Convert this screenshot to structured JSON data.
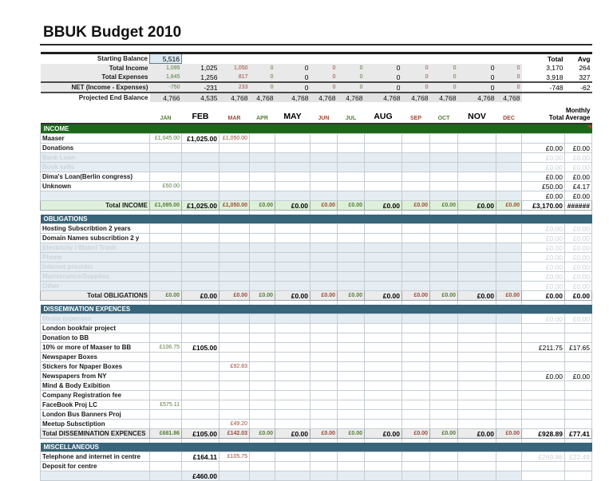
{
  "title": "BBUK Budget 2010",
  "months": [
    "JAN",
    "FEB",
    "MAR",
    "APR",
    "MAY",
    "JUN",
    "JUL",
    "AUG",
    "SEP",
    "OCT",
    "NOV",
    "DEC"
  ],
  "right_header": {
    "line1": "Monthly",
    "line2": "Total Average"
  },
  "colors": {
    "income_bar": "#1b681b",
    "section_bar": "#39657a",
    "positive_text": "#567b38",
    "negative_text": "#9c4a38",
    "total_income_bg": "#def0da",
    "shade_row_bg": "#e6edf2"
  },
  "summary": {
    "starting_balance": {
      "label": "Starting Balance",
      "value": "5,516"
    },
    "col_headers": {
      "total": "Total",
      "avg": "Avg"
    },
    "rows": [
      {
        "label": "Total Income",
        "values": [
          "1,095",
          "1,025",
          "1,050",
          "0",
          "0",
          "0",
          "0",
          "0",
          "0",
          "0",
          "0",
          "0"
        ],
        "total": "3,170",
        "avg": "264"
      },
      {
        "label": "Total Expenses",
        "values": [
          "1,845",
          "1,256",
          "817",
          "0",
          "0",
          "0",
          "0",
          "0",
          "0",
          "0",
          "0",
          "0"
        ],
        "total": "3,918",
        "avg": "327"
      },
      {
        "label": "NET (Income - Expenses)",
        "values": [
          "-750",
          "-231",
          "233",
          "0",
          "0",
          "0",
          "0",
          "0",
          "0",
          "0",
          "0",
          "0"
        ],
        "total": "-748",
        "avg": "-62"
      },
      {
        "label": "Projected End Balance",
        "values": [
          "4,766",
          "4,535",
          "4,768",
          "4,768",
          "4,768",
          "4,768",
          "4,768",
          "4,768",
          "4,768",
          "4,768",
          "4,768",
          "4,768"
        ],
        "total": "",
        "avg": ""
      }
    ]
  },
  "sections": [
    {
      "name": "INCOME",
      "accent": "green",
      "comment_marker": true,
      "rows": [
        {
          "label": "Maaser",
          "values": [
            "£1,045.00",
            "£1,025.00",
            "£1,050.00",
            "",
            "",
            "",
            "",
            "",
            "",
            "",
            "",
            ""
          ],
          "total": "",
          "avg": ""
        },
        {
          "label": "Donations",
          "values": [
            "",
            "",
            "",
            "",
            "",
            "",
            "",
            "",
            "",
            "",
            "",
            ""
          ],
          "total": "£0.00",
          "avg": "£0.00"
        },
        {
          "label": "Bank Loan",
          "muted": true,
          "total_muted": true,
          "values": [
            "",
            "",
            "",
            "",
            "",
            "",
            "",
            "",
            "",
            "",
            "",
            ""
          ],
          "total": "£0.00",
          "avg": "£0.00"
        },
        {
          "label": "Book sells",
          "muted": true,
          "total_muted": true,
          "values": [
            "",
            "",
            "",
            "",
            "",
            "",
            "",
            "",
            "",
            "",
            "",
            ""
          ],
          "total": "£0.00",
          "avg": "£0.00"
        },
        {
          "label": "Dima's Loan(Berlin congress)",
          "values": [
            "",
            "",
            "",
            "",
            "",
            "",
            "",
            "",
            "",
            "",
            "",
            ""
          ],
          "total": "£0.00",
          "avg": "£0.00"
        },
        {
          "label": "Unknown",
          "values": [
            "£50.00",
            "",
            "",
            "",
            "",
            "",
            "",
            "",
            "",
            "",
            "",
            ""
          ],
          "total": "£50.00",
          "avg": "£4.17"
        },
        {
          "label": "",
          "values": [
            "",
            "",
            "",
            "",
            "",
            "",
            "",
            "",
            "",
            "",
            "",
            ""
          ],
          "total": "£0.00",
          "avg": "£0.00"
        }
      ],
      "total_row": {
        "label": "Total INCOME",
        "align": "right",
        "values": [
          "£1,095.00",
          "£1,025.00",
          "£1,050.00",
          "£0.00",
          "£0.00",
          "£0.00",
          "£0.00",
          "£0.00",
          "£0.00",
          "£0.00",
          "£0.00",
          "£0.00"
        ],
        "total": "£3,170.00",
        "avg": "######"
      }
    },
    {
      "name": "OBLIGATIONS",
      "accent": "teal",
      "rows": [
        {
          "label": "Hosting Subscribtion 2 years",
          "total_muted": true,
          "values": [
            "",
            "",
            "",
            "",
            "",
            "",
            "",
            "",
            "",
            "",
            "",
            ""
          ],
          "total": "£0.00",
          "avg": "£0.00"
        },
        {
          "label": "Domain Names subscribtion 2 y",
          "total_muted": true,
          "values": [
            "",
            "",
            "",
            "",
            "",
            "",
            "",
            "",
            "",
            "",
            "",
            ""
          ],
          "total": "£0.00",
          "avg": "£0.00"
        },
        {
          "label": "Electricity / Water/ Trash",
          "muted": true,
          "total_muted": true,
          "values": [
            "",
            "",
            "",
            "",
            "",
            "",
            "",
            "",
            "",
            "",
            "",
            ""
          ],
          "total": "£0.00",
          "avg": "£0.00"
        },
        {
          "label": "Phone",
          "muted": true,
          "total_muted": true,
          "values": [
            "",
            "",
            "",
            "",
            "",
            "",
            "",
            "",
            "",
            "",
            "",
            ""
          ],
          "total": "£0.00",
          "avg": "£0.00"
        },
        {
          "label": "Internet provider",
          "muted": true,
          "total_muted": true,
          "values": [
            "",
            "",
            "",
            "",
            "",
            "",
            "",
            "",
            "",
            "",
            "",
            ""
          ],
          "total": "£0.00",
          "avg": "£0.00"
        },
        {
          "label": "Maintenance/Supplies",
          "muted": true,
          "total_muted": true,
          "values": [
            "",
            "",
            "",
            "",
            "",
            "",
            "",
            "",
            "",
            "",
            "",
            ""
          ],
          "total": "£0.00",
          "avg": "£0.00"
        },
        {
          "label": "Other",
          "muted": true,
          "total_muted": true,
          "values": [
            "",
            "",
            "",
            "",
            "",
            "",
            "",
            "",
            "",
            "",
            "",
            ""
          ],
          "total": "£0.00",
          "avg": "£0.00"
        }
      ],
      "total_row": {
        "label": "Total OBLIGATIONS",
        "align": "right",
        "values": [
          "£0.00",
          "£0.00",
          "£0.00",
          "£0.00",
          "£0.00",
          "£0.00",
          "£0.00",
          "£0.00",
          "£0.00",
          "£0.00",
          "£0.00",
          "£0.00"
        ],
        "total": "£0.00",
        "avg": "£0.00"
      }
    },
    {
      "name": "DISSEMINATION EXPENCES",
      "accent": "teal",
      "rows": [
        {
          "label": "Media expenses",
          "muted": true,
          "total_muted": true,
          "values": [
            "",
            "",
            "",
            "",
            "",
            "",
            "",
            "",
            "",
            "",
            "",
            ""
          ],
          "total": "£0.00",
          "avg": "£0.00"
        },
        {
          "label": "London bookfair project",
          "values": [
            "",
            "",
            "",
            "",
            "",
            "",
            "",
            "",
            "",
            "",
            "",
            ""
          ],
          "total": "",
          "avg": ""
        },
        {
          "label": "Donation to BB",
          "values": [
            "",
            "",
            "",
            "",
            "",
            "",
            "",
            "",
            "",
            "",
            "",
            ""
          ],
          "total": "",
          "avg": ""
        },
        {
          "label": "10% or more of Maaser to BB",
          "values": [
            "£106.75",
            "£105.00",
            "",
            "",
            "",
            "",
            "",
            "",
            "",
            "",
            "",
            ""
          ],
          "total": "£211.75",
          "avg": "£17.65"
        },
        {
          "label": "Newspaper Boxes",
          "values": [
            "",
            "",
            "",
            "",
            "",
            "",
            "",
            "",
            "",
            "",
            "",
            ""
          ],
          "total": "",
          "avg": ""
        },
        {
          "label": "Stickers for Npaper Boxes",
          "values": [
            "",
            "",
            "£92.83",
            "",
            "",
            "",
            "",
            "",
            "",
            "",
            "",
            ""
          ],
          "total": "",
          "avg": ""
        },
        {
          "label": "Newspapers from NY",
          "values": [
            "",
            "",
            "",
            "",
            "",
            "",
            "",
            "",
            "",
            "",
            "",
            ""
          ],
          "total": "£0.00",
          "avg": "£0.00"
        },
        {
          "label": "Mind & Body Exibition",
          "values": [
            "",
            "",
            "",
            "",
            "",
            "",
            "",
            "",
            "",
            "",
            "",
            ""
          ],
          "total": "",
          "avg": ""
        },
        {
          "label": "Company Registration fee",
          "values": [
            "",
            "",
            "",
            "",
            "",
            "",
            "",
            "",
            "",
            "",
            "",
            ""
          ],
          "total": "",
          "avg": ""
        },
        {
          "label": "FaceBook Proj LC",
          "values": [
            "£575.11",
            "",
            "",
            "",
            "",
            "",
            "",
            "",
            "",
            "",
            "",
            ""
          ],
          "total": "",
          "avg": ""
        },
        {
          "label": "London Bus Banners Proj",
          "values": [
            "",
            "",
            "",
            "",
            "",
            "",
            "",
            "",
            "",
            "",
            "",
            ""
          ],
          "total": "",
          "avg": ""
        },
        {
          "label": "Meetup Subsctiption",
          "values": [
            "",
            "",
            "£49.20",
            "",
            "",
            "",
            "",
            "",
            "",
            "",
            "",
            ""
          ],
          "total": "",
          "avg": ""
        }
      ],
      "total_row": {
        "label": "Total DISSEMINATION EXPENCES",
        "align": "left",
        "values": [
          "£681.86",
          "£105.00",
          "£142.03",
          "£0.00",
          "£0.00",
          "£0.00",
          "£0.00",
          "£0.00",
          "£0.00",
          "£0.00",
          "£0.00",
          "£0.00"
        ],
        "total": "£928.89",
        "avg": "£77.41"
      }
    },
    {
      "name": "MISCELLANEOUS",
      "accent": "teal",
      "rows": [
        {
          "label": "Telephone and internet in centre",
          "total_muted": true,
          "values": [
            "",
            "£164.11",
            "£105.75",
            "",
            "",
            "",
            "",
            "",
            "",
            "",
            "",
            ""
          ],
          "total": "£269.86",
          "avg": "£22.49"
        },
        {
          "label": "Deposit for centre",
          "values": [
            "",
            "",
            "",
            "",
            "",
            "",
            "",
            "",
            "",
            "",
            "",
            ""
          ],
          "total": "",
          "avg": ""
        },
        {
          "label": "",
          "values": [
            "",
            "£460.00",
            "",
            "",
            "",
            "",
            "",
            "",
            "",
            "",
            "",
            ""
          ],
          "total": "",
          "avg": ""
        }
      ],
      "total_row": null
    }
  ]
}
